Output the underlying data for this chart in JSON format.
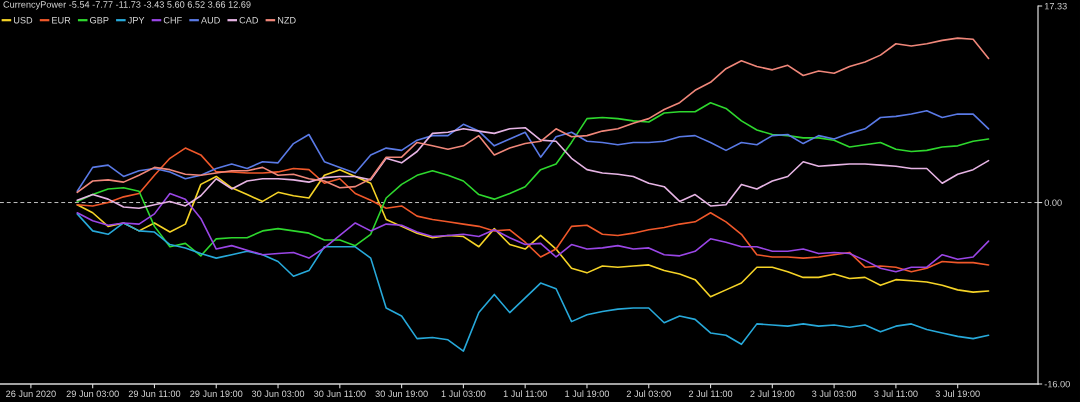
{
  "chart_data": {
    "type": "line",
    "title": "CurrencyPower -5.54 -7.77 -11.73 -3.43 5.60 6.52 3.66 12.69",
    "categories": [
      "26 Jun 2020",
      null,
      null,
      null,
      "29 Jun 03:00",
      null,
      null,
      null,
      "29 Jun 11:00",
      null,
      null,
      null,
      "29 Jun 19:00",
      null,
      null,
      null,
      "30 Jun 03:00",
      null,
      null,
      null,
      "30 Jun 11:00",
      null,
      null,
      null,
      "30 Jun 19:00",
      null,
      null,
      null,
      "1 Jul 03:00",
      null,
      null,
      null,
      "1 Jul 11:00",
      null,
      null,
      null,
      "1 Jul 19:00",
      null,
      null,
      null,
      "2 Jul 03:00",
      null,
      null,
      null,
      "2 Jul 11:00",
      null,
      null,
      null,
      "2 Jul 19:00",
      null,
      null,
      null,
      "3 Jul 03:00",
      null,
      null,
      null,
      "3 Jul 11:00",
      null,
      null,
      null,
      "3 Jul 19:00",
      null,
      null
    ],
    "series": [
      {
        "name": "USD",
        "color": "#f5d327",
        "values": [
          null,
          null,
          null,
          -0.2,
          -0.9,
          -2.1,
          -1.8,
          -2.5,
          -1.8,
          -2.6,
          -1.9,
          1.6,
          2.3,
          1.3,
          0.7,
          0.1,
          0.9,
          0.6,
          0.4,
          2.4,
          2.9,
          2.3,
          1.7,
          -1.5,
          -2.1,
          -2.7,
          -3.1,
          -2.9,
          -3.0,
          -3.9,
          -2.3,
          -3.7,
          -4.1,
          -2.9,
          -4.1,
          -5.8,
          -6.2,
          -5.6,
          -5.7,
          -5.6,
          -5.5,
          -6.0,
          -6.3,
          -6.8,
          -8.3,
          -7.7,
          -7.1,
          -5.7,
          -5.7,
          -6.1,
          -6.6,
          -6.6,
          -6.3,
          -6.7,
          -6.6,
          -7.3,
          -6.8,
          -6.9,
          -7.0,
          -7.3,
          -7.7,
          -7.9,
          -7.8
        ]
      },
      {
        "name": "EUR",
        "color": "#f0582a",
        "values": [
          null,
          null,
          null,
          -0.2,
          -0.3,
          0.0,
          0.5,
          0.8,
          2.4,
          3.9,
          4.8,
          4.2,
          2.7,
          2.7,
          2.6,
          2.6,
          2.7,
          3.0,
          2.9,
          1.7,
          2.1,
          0.8,
          0.2,
          -0.5,
          -0.3,
          -1.2,
          -1.5,
          -1.7,
          -1.9,
          -2.1,
          -2.5,
          -2.4,
          -3.5,
          -4.8,
          -4.1,
          -2.1,
          -2.0,
          -2.8,
          -2.9,
          -2.7,
          -2.4,
          -2.2,
          -1.9,
          -1.7,
          -0.9,
          -1.7,
          -2.8,
          -4.6,
          -4.8,
          -4.8,
          -4.9,
          -4.8,
          -4.6,
          -4.4,
          -5.7,
          -5.6,
          -5.7,
          -6.1,
          -5.8,
          -5.2,
          -5.3,
          -5.3,
          -5.5
        ]
      },
      {
        "name": "GBP",
        "color": "#2ed82e",
        "values": [
          null,
          null,
          null,
          0.1,
          0.7,
          1.2,
          1.3,
          1.0,
          -2.1,
          -3.9,
          -3.6,
          -4.7,
          -3.2,
          -3.1,
          -3.1,
          -2.5,
          -2.3,
          -2.5,
          -2.7,
          -3.3,
          -3.3,
          -3.8,
          -2.8,
          0.4,
          1.6,
          2.4,
          2.8,
          2.4,
          1.9,
          0.7,
          0.3,
          0.8,
          1.4,
          2.9,
          3.4,
          5.3,
          7.4,
          7.5,
          7.4,
          7.2,
          7.1,
          7.9,
          8.0,
          8.0,
          8.8,
          8.3,
          7.2,
          6.4,
          6.0,
          5.9,
          5.7,
          5.7,
          5.5,
          4.9,
          5.1,
          5.3,
          4.7,
          4.5,
          4.6,
          4.9,
          5.0,
          5.4,
          5.6
        ]
      },
      {
        "name": "JPY",
        "color": "#27a9da",
        "values": [
          null,
          null,
          null,
          -1.0,
          -2.5,
          -2.8,
          -1.8,
          -2.5,
          -2.6,
          -3.7,
          -4.0,
          -4.5,
          -4.9,
          -4.6,
          -4.3,
          -4.6,
          -5.2,
          -6.5,
          -6.0,
          -3.9,
          -3.9,
          -3.9,
          -4.9,
          -9.3,
          -10.0,
          -12.0,
          -11.9,
          -12.1,
          -13.1,
          -9.7,
          -8.1,
          -9.7,
          -8.4,
          -7.1,
          -7.6,
          -10.5,
          -9.9,
          -9.6,
          -9.4,
          -9.3,
          -9.3,
          -10.6,
          -10.0,
          -10.3,
          -11.5,
          -11.7,
          -12.5,
          -10.7,
          -10.8,
          -10.9,
          -10.7,
          -10.9,
          -10.8,
          -11.0,
          -10.8,
          -11.4,
          -10.9,
          -10.7,
          -11.2,
          -11.5,
          -11.8,
          -12.0,
          -11.7
        ]
      },
      {
        "name": "CHF",
        "color": "#9a46e6",
        "values": [
          null,
          null,
          null,
          -0.9,
          -1.6,
          -2.0,
          -1.8,
          -1.9,
          -1.0,
          0.8,
          0.3,
          -1.4,
          -4.1,
          -3.8,
          -4.2,
          -4.6,
          -4.5,
          -4.4,
          -4.9,
          -4.0,
          -2.9,
          -1.8,
          -2.5,
          -1.9,
          -2.0,
          -2.6,
          -3.0,
          -2.9,
          -2.8,
          -3.0,
          -2.4,
          -3.1,
          -3.7,
          -3.6,
          -4.8,
          -3.7,
          -4.1,
          -4.0,
          -3.8,
          -4.1,
          -4.0,
          -4.6,
          -4.7,
          -4.3,
          -3.2,
          -3.5,
          -3.9,
          -3.9,
          -4.3,
          -4.3,
          -4.1,
          -4.5,
          -4.4,
          -4.5,
          -5.1,
          -5.8,
          -6.1,
          -5.7,
          -5.7,
          -4.6,
          -5.0,
          -4.8,
          -3.4
        ]
      },
      {
        "name": "AUD",
        "color": "#5a7ae6",
        "values": [
          null,
          null,
          null,
          1.0,
          3.1,
          3.3,
          2.3,
          2.8,
          3.0,
          2.7,
          2.1,
          2.4,
          3.0,
          3.4,
          3.0,
          3.6,
          3.5,
          5.2,
          6.0,
          3.6,
          3.1,
          2.6,
          4.2,
          4.8,
          4.6,
          5.5,
          5.9,
          5.9,
          6.9,
          6.3,
          5.0,
          5.6,
          6.2,
          4.0,
          5.8,
          6.2,
          5.4,
          5.3,
          5.1,
          5.3,
          5.3,
          5.4,
          5.8,
          5.9,
          5.3,
          4.6,
          5.3,
          5.1,
          5.9,
          6.0,
          5.2,
          5.9,
          5.6,
          6.1,
          6.5,
          7.5,
          7.6,
          7.8,
          8.1,
          7.5,
          7.8,
          7.8,
          6.5
        ]
      },
      {
        "name": "CAD",
        "color": "#e6b4e4",
        "values": [
          null,
          null,
          null,
          0.2,
          0.7,
          0.3,
          -0.4,
          -0.5,
          -0.2,
          0.1,
          -0.3,
          0.6,
          2.1,
          1.2,
          1.9,
          2.1,
          2.1,
          2.0,
          1.8,
          2.2,
          2.3,
          2.3,
          2.0,
          3.9,
          3.5,
          4.5,
          6.1,
          6.2,
          6.5,
          6.3,
          6.1,
          6.5,
          6.6,
          5.5,
          5.4,
          3.9,
          2.9,
          2.6,
          2.5,
          2.3,
          1.7,
          1.4,
          0.1,
          0.7,
          -0.3,
          -0.2,
          1.6,
          1.2,
          1.9,
          2.3,
          3.6,
          3.2,
          3.3,
          3.4,
          3.4,
          3.3,
          3.2,
          3.0,
          3.0,
          1.7,
          2.5,
          2.9,
          3.7
        ]
      },
      {
        "name": "NZD",
        "color": "#f0877a",
        "values": [
          null,
          null,
          null,
          0.9,
          1.9,
          2.0,
          1.8,
          2.4,
          3.1,
          2.9,
          2.5,
          2.4,
          2.6,
          2.8,
          2.8,
          3.1,
          2.4,
          2.5,
          2.1,
          1.9,
          1.3,
          1.4,
          2.1,
          4.0,
          4.0,
          5.3,
          5.0,
          4.7,
          5.0,
          5.9,
          4.2,
          4.8,
          5.2,
          5.4,
          6.5,
          5.8,
          5.9,
          6.3,
          6.5,
          7.0,
          7.4,
          8.2,
          8.8,
          9.9,
          10.6,
          11.8,
          12.5,
          12.0,
          11.7,
          12.1,
          11.2,
          11.6,
          11.4,
          12.0,
          12.4,
          13.0,
          14.0,
          13.8,
          14.0,
          14.3,
          14.5,
          14.4,
          12.7
        ]
      }
    ],
    "ylim": [
      -16.0,
      17.33
    ],
    "yticks": [
      {
        "value": -16.0,
        "label": "-16.00"
      },
      {
        "value": 0,
        "label": "0.00"
      },
      17.33
    ],
    "ref_lines": [
      {
        "axis": "y",
        "value": 0,
        "color": "#c8c8c8",
        "line_style": "dashed"
      }
    ],
    "legend": "top left"
  }
}
